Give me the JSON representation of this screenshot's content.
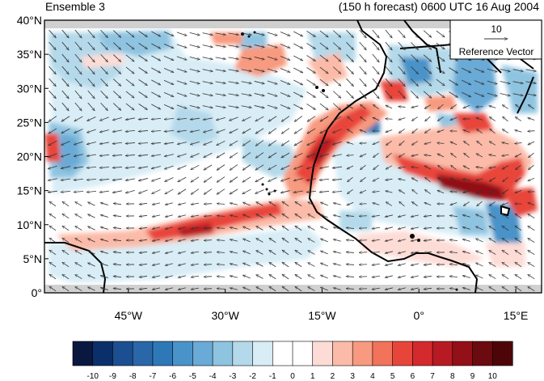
{
  "header": {
    "title_left": "Ensemble 3",
    "title_right": "(150 h forecast) 0600 UTC 16 Aug 2004"
  },
  "map": {
    "lat_labels": [
      "40°N",
      "35°N",
      "30°N",
      "25°N",
      "20°N",
      "15°N",
      "10°N",
      "5°N",
      "0°"
    ],
    "lon_labels": [
      "45°W",
      "30°W",
      "15°W",
      "0°",
      "15°E"
    ],
    "lat_values": [
      40,
      35,
      30,
      25,
      20,
      15,
      10,
      5,
      0
    ],
    "lon_values": [
      -45,
      -30,
      -15,
      0,
      15
    ],
    "lon_range": [
      -58,
      19
    ],
    "lat_range": [
      0,
      40
    ]
  },
  "reference_vector": {
    "value": "10",
    "label": "Reference Vector"
  },
  "colorbar": {
    "labels": [
      "-10",
      "-9",
      "-8",
      "-7",
      "-6",
      "-5",
      "-4",
      "-3",
      "-2",
      "-1",
      "0",
      "1",
      "2",
      "3",
      "4",
      "5",
      "6",
      "7",
      "8",
      "9",
      "10"
    ],
    "colors": [
      "#08183f",
      "#0a2f6b",
      "#1c4f91",
      "#2a67a8",
      "#2e78b8",
      "#4a93c8",
      "#6aaad6",
      "#8fc4e1",
      "#b4d9ea",
      "#d8edf6",
      "#ffffff",
      "#ffffff",
      "#fddcd6",
      "#fbbba8",
      "#f79a7f",
      "#f2725a",
      "#e8453a",
      "#d42a2d",
      "#b81a23",
      "#931018",
      "#6b0a0f",
      "#4e0508"
    ]
  }
}
